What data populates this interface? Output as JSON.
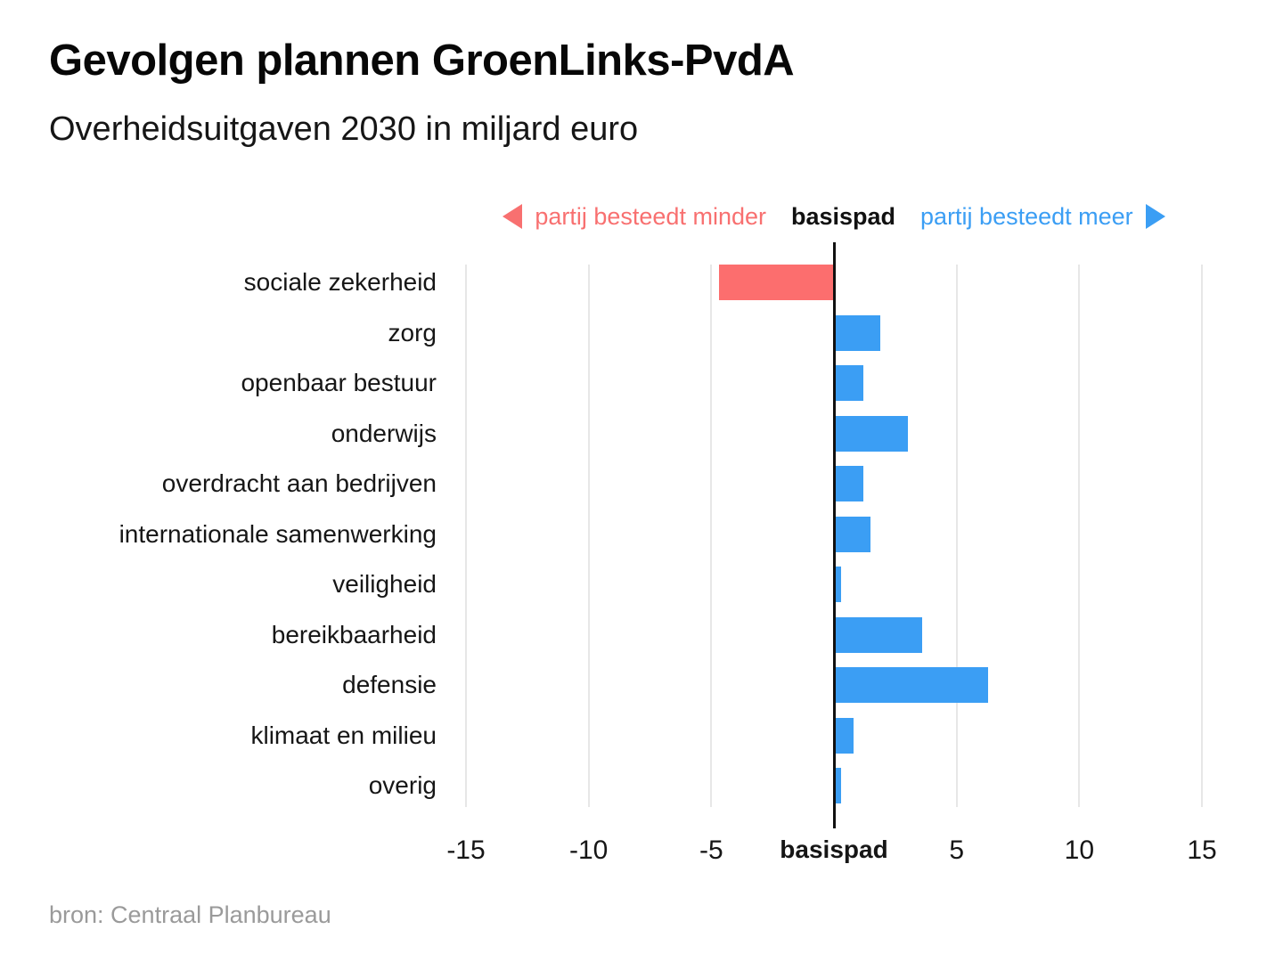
{
  "header": {
    "title": "Gevolgen plannen GroenLinks-PvdA",
    "subtitle": "Overheidsuitgaven 2030 in miljard euro"
  },
  "legend": {
    "less_label": "partij besteedt minder",
    "base_label": "basispad",
    "more_label": "partij besteedt meer",
    "less_color": "#f87070",
    "base_color": "#111111",
    "more_color": "#3b9ef4"
  },
  "chart_data": {
    "type": "bar",
    "orientation": "horizontal",
    "title": "Gevolgen plannen GroenLinks-PvdA",
    "subtitle": "Overheidsuitgaven 2030 in miljard euro",
    "unit": "miljard euro",
    "categories": [
      "sociale zekerheid",
      "zorg",
      "openbaar bestuur",
      "onderwijs",
      "overdracht aan bedrijven",
      "internationale samenwerking",
      "veiligheid",
      "bereikbaarheid",
      "defensie",
      "klimaat en milieu",
      "overig"
    ],
    "values": [
      -4.7,
      1.9,
      1.2,
      3.0,
      1.2,
      1.5,
      0.3,
      3.6,
      6.3,
      0.8,
      0.3
    ],
    "baseline_label": "basispad",
    "baseline_value": 0,
    "xlim": [
      -15,
      15
    ],
    "x_ticks": [
      -15,
      -10,
      -5,
      0,
      5,
      10,
      15
    ],
    "x_tick_labels": [
      "-15",
      "-10",
      "-5",
      "basispad",
      "5",
      "10",
      "15"
    ],
    "grid": true,
    "legend_position": "top",
    "bar_color_negative": "#fc6e6e",
    "bar_color_positive": "#3b9ef4",
    "gridline_color": "#e7e7e7",
    "axis_color": "#111111"
  },
  "footer": {
    "source": "bron: Centraal Planbureau"
  }
}
